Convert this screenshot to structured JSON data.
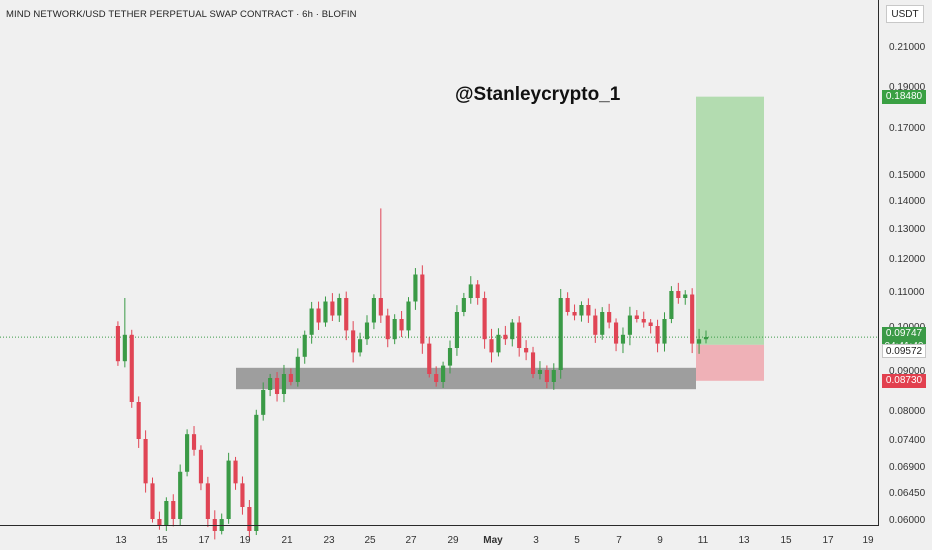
{
  "title": "MIND NETWORK/USD TETHER PERPETUAL SWAP CONTRACT · 6h · BLOFIN",
  "currency": "USDT",
  "watermark": "@Stanleycrypto_1",
  "colors": {
    "up": "#3a9a46",
    "down": "#e04555",
    "target": "#a8d8a4",
    "stop": "#eea6ad",
    "zone": "#8a8a8a"
  },
  "chart_data": {
    "type": "candlestick",
    "y_ticks": [
      "0.21000",
      "0.19000",
      "0.17000",
      "0.15000",
      "0.14000",
      "0.13000",
      "0.12000",
      "0.11000",
      "0.10000",
      "0.09000",
      "0.08000",
      "0.07400",
      "0.06900",
      "0.06450",
      "0.06000"
    ],
    "x_ticks": [
      "13",
      "15",
      "17",
      "19",
      "21",
      "23",
      "25",
      "27",
      "29",
      "May",
      "3",
      "5",
      "7",
      "9",
      "11",
      "13",
      "15",
      "17",
      "19"
    ],
    "price_labels": [
      {
        "value": "0.18480",
        "kind": "target"
      },
      {
        "value": "0.09747",
        "kind": "last"
      },
      {
        "value": "04:41:40",
        "kind": "countdown"
      },
      {
        "value": "0.09572",
        "kind": "entry"
      },
      {
        "value": "0.08730",
        "kind": "stop"
      }
    ],
    "last_price": 0.09747,
    "countdown": "04:41:40",
    "position": {
      "entry": 0.09572,
      "target": 0.1848,
      "stop": 0.0873
    },
    "support_zone": [
      0.0852,
      0.0905
    ],
    "ohlc_path": [
      0.1,
      0.092,
      0.098,
      0.082,
      0.074,
      0.066,
      0.06,
      0.059,
      0.063,
      0.06,
      0.068,
      0.075,
      0.072,
      0.066,
      0.06,
      0.058,
      0.06,
      0.07,
      0.066,
      0.062,
      0.058,
      0.079,
      0.085,
      0.088,
      0.084,
      0.089,
      0.087,
      0.093,
      0.098,
      0.105,
      0.101,
      0.107,
      0.103,
      0.108,
      0.099,
      0.094,
      0.097,
      0.101,
      0.108,
      0.103,
      0.097,
      0.102,
      0.099,
      0.107,
      0.115,
      0.096,
      0.089,
      0.087,
      0.091,
      0.095,
      0.104,
      0.108,
      0.112,
      0.108,
      0.097,
      0.094,
      0.098,
      0.097,
      0.101,
      0.095,
      0.094,
      0.089,
      0.09,
      0.087,
      0.09,
      0.108,
      0.104,
      0.103,
      0.106,
      0.103,
      0.098,
      0.104,
      0.101,
      0.096,
      0.098,
      0.103,
      0.102,
      0.101,
      0.1,
      0.096,
      0.102,
      0.11,
      0.108,
      0.109,
      0.096,
      0.097,
      0.0975
    ],
    "ylim": [
      0.0595,
      0.215
    ]
  }
}
